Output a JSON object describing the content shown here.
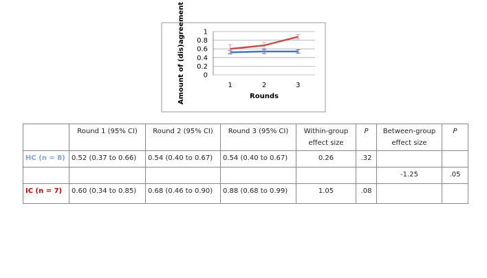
{
  "chart_data": {
    "type": "line",
    "y_label": "Amount of (dis)agreement",
    "x_label": "Rounds",
    "categories": [
      "1",
      "2",
      "3"
    ],
    "series": [
      {
        "color": "#4472c4",
        "error_color": "#4a7bc8",
        "values": [
          0.52,
          0.54,
          0.54
        ],
        "errors": [
          0.04,
          0.05,
          0.04
        ]
      },
      {
        "color": "#c0504d",
        "error_color": "#e8a0a0",
        "values": [
          0.6,
          0.68,
          0.88
        ],
        "errors": [
          0.1,
          0.07,
          0.05
        ]
      }
    ],
    "ylim": [
      0,
      1
    ],
    "yticks": [
      0,
      0.2,
      0.4,
      0.6,
      0.8,
      1
    ],
    "grid": true
  },
  "table": {
    "header": [
      null,
      "Round 1 (95% CI)",
      "Round 2 (95% CI)",
      "Round 3 (95% CI)",
      "Within-group effect size",
      "P",
      "Between-group effect size",
      "P"
    ],
    "rows": [
      [
        "HC (n = 8)",
        "0.52 (0.37 to 0.66)",
        "0.54 (0.40 to 0.67)",
        "0.54 (0.40 to 0.67)",
        "0.26",
        ".32",
        null,
        null
      ],
      [
        null,
        null,
        null,
        null,
        null,
        null,
        "-1.25",
        ".05"
      ],
      [
        "IC (n = 7)",
        "0.60 (0.34 to 0.85)",
        "0.68 (0.46 to 0.90)",
        "0.88 (0.68 to 0.99)",
        "1.05",
        ".08",
        null,
        null
      ]
    ]
  }
}
